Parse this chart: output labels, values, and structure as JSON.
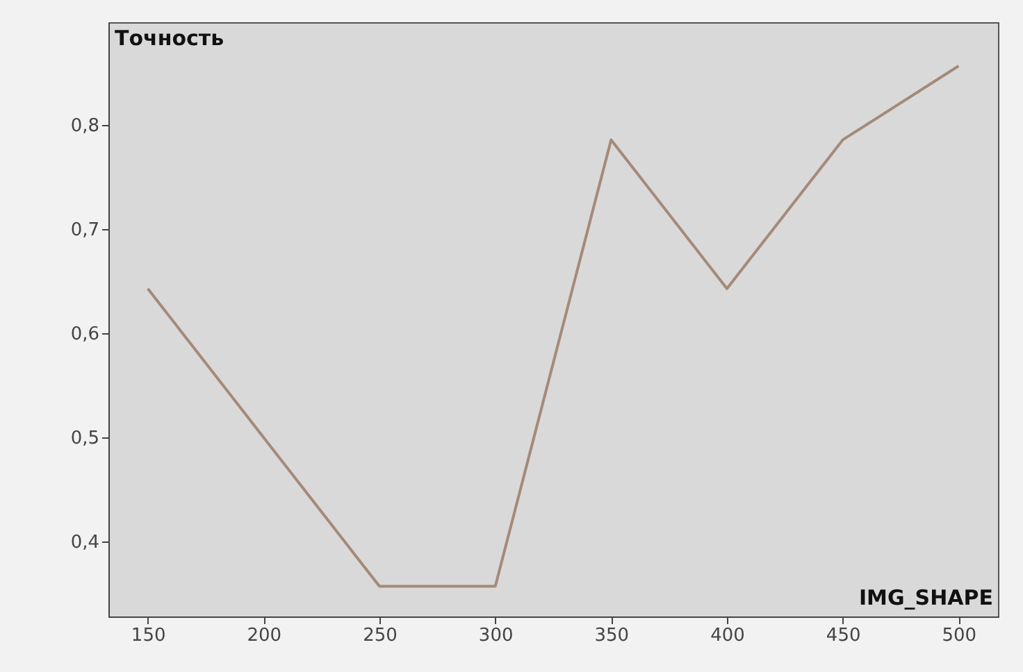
{
  "chart_data": {
    "type": "line",
    "xlabel": "IMG_SHAPE",
    "ylabel": "Точность",
    "x": [
      150,
      200,
      250,
      300,
      350,
      400,
      450,
      500
    ],
    "series": [
      {
        "color": "#a58a78",
        "values": [
          0.643,
          0.5,
          0.357,
          0.357,
          0.786,
          0.643,
          0.786,
          0.857
        ]
      }
    ],
    "xlim": [
      133,
      517
    ],
    "xticks": [
      150,
      200,
      250,
      300,
      350,
      400,
      450,
      500
    ],
    "ylim": [
      0.328,
      0.899
    ],
    "yticks": [
      {
        "value": 0.4,
        "label": "0,4"
      },
      {
        "value": 0.5,
        "label": "0,5"
      },
      {
        "value": 0.6,
        "label": "0,6"
      },
      {
        "value": 0.7,
        "label": "0,7"
      },
      {
        "value": 0.8,
        "label": "0,8"
      }
    ],
    "grid": false,
    "marker": "none"
  }
}
